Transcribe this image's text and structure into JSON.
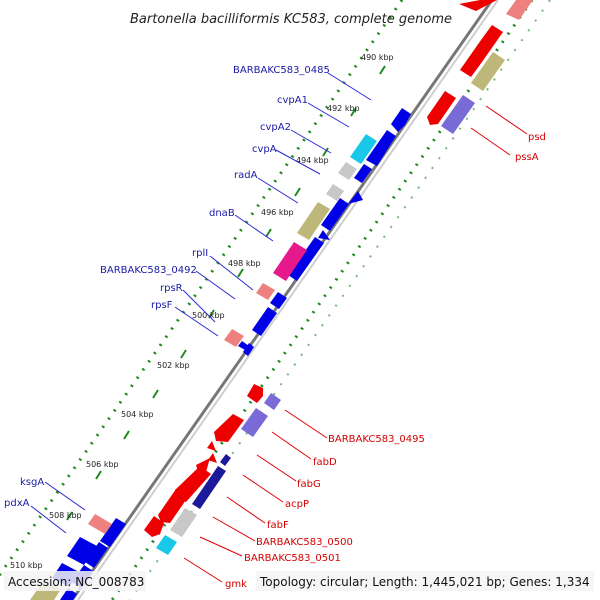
{
  "title": "Bartonella bacilliformis KC583, complete genome",
  "footer": {
    "accession": "Accession: NC_008783",
    "summary": "Topology: circular; Length: 1,445,021 bp; Genes: 1,334"
  },
  "ticks": [
    "490 kbp",
    "492 kbp",
    "494 kbp",
    "496 kbp",
    "498 kbp",
    "500 kbp",
    "502 kbp",
    "504 kbp",
    "506 kbp",
    "508 kbp",
    "510 kbp"
  ],
  "genes_left": [
    "BARBAKC583_0485",
    "cvpA1",
    "cvpA2",
    "cvpA",
    "radA",
    "dnaB",
    "rplI",
    "BARBAKC583_0492",
    "rpsR",
    "rpsF",
    "ksgA",
    "pdxA"
  ],
  "genes_right": [
    "psd",
    "pssA",
    "BARBAKC583_0495",
    "fabD",
    "fabG",
    "acpP",
    "fabF",
    "BARBAKC583_0500",
    "BARBAKC583_0501",
    "gmk"
  ],
  "colors": {
    "backbone": "#888888",
    "forward_cds": "#0000e6",
    "reverse_cds": "#ee0000",
    "gc_skew_dots": "#1f8a1f",
    "olive_track": "#bdb87a",
    "cyan_track": "#19c8e8",
    "magenta_track": "#e6198c",
    "violet_track": "#7a6ad6",
    "pink_track": "#ee8080",
    "gray_track": "#c8c8c8"
  }
}
